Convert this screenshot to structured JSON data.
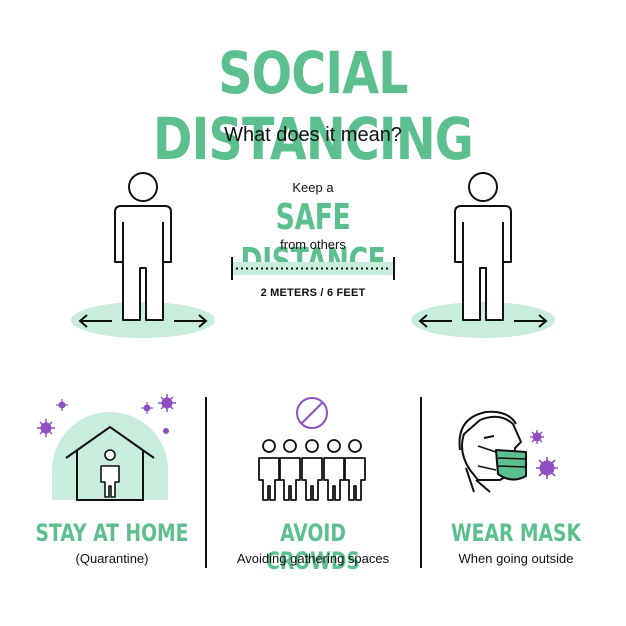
{
  "header": {
    "title": "SOCIAL DISTANCING",
    "subtitle": "What does it mean?"
  },
  "distance": {
    "keep": "Keep a",
    "headline": "SAFE DISTANCE",
    "from": "from others",
    "measure": "2 METERS / 6 FEET"
  },
  "tips": [
    {
      "title": "STAY AT HOME",
      "sub": "(Quarantine)"
    },
    {
      "title": "AVOID CROWDS",
      "sub": "Avoiding gathering spaces"
    },
    {
      "title": "WEAR MASK",
      "sub": "When going outside"
    }
  ],
  "colors": {
    "accent": "#5cc08e",
    "mint": "#c8eddc",
    "virus": "#8e4fc0",
    "ink": "#111111"
  }
}
